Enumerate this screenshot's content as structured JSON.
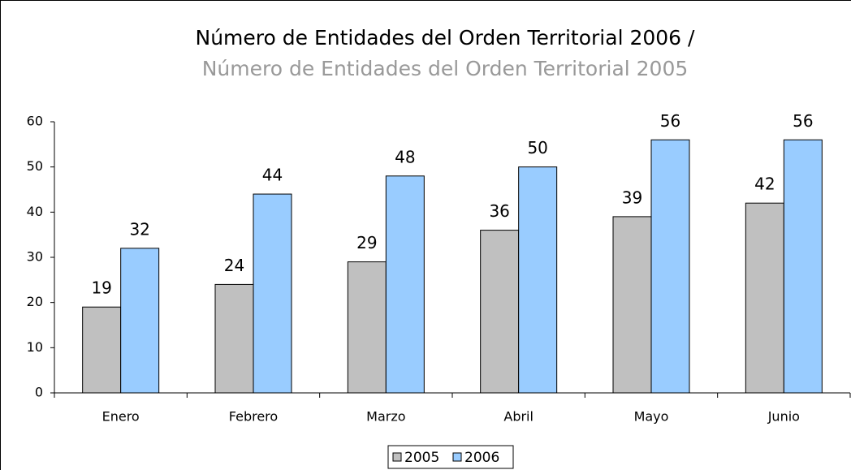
{
  "chart_data": {
    "type": "bar",
    "title": "Número de Entidades del Orden Territorial 2006 /",
    "subtitle": "Número de Entidades del Orden Territorial 2005",
    "categories": [
      "Enero",
      "Febrero",
      "Marzo",
      "Abril",
      "Mayo",
      "Junio"
    ],
    "series": [
      {
        "name": "2005",
        "color": "#c0c0c0",
        "values": [
          19,
          24,
          29,
          36,
          39,
          42
        ]
      },
      {
        "name": "2006",
        "color": "#99ccff",
        "values": [
          32,
          44,
          48,
          50,
          56,
          56
        ]
      }
    ],
    "ylim": [
      0,
      60
    ],
    "yticks": [
      0,
      10,
      20,
      30,
      40,
      50,
      60
    ],
    "grid": false,
    "legend": "bottom"
  }
}
